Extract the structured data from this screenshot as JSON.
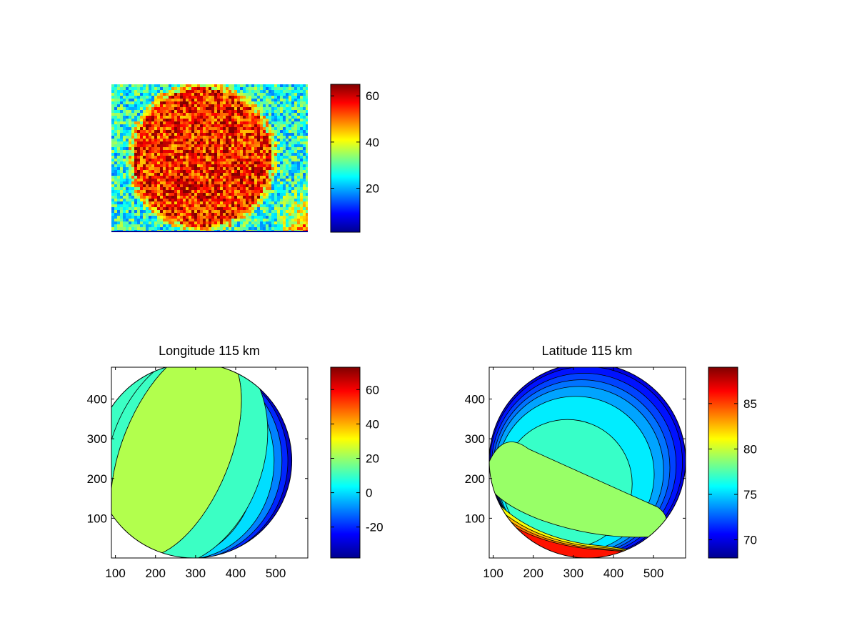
{
  "chart_data": [
    {
      "type": "heatmap",
      "title": "",
      "description_of_field": "noisy intensity image of a bright disk on a lower background",
      "colormap": "jet",
      "axes_visible": false,
      "colorbar": {
        "range": [
          1,
          65
        ],
        "ticks": [
          20,
          40,
          60
        ],
        "tick_labels": [
          "20",
          "40",
          "60"
        ]
      },
      "disk_level": 55,
      "background_level": 27
    },
    {
      "type": "heatmap",
      "title": "Longitude 115 km",
      "colormap": "jet",
      "xlim": [
        90,
        580
      ],
      "ylim": [
        0,
        480
      ],
      "x_ticks": [
        100,
        200,
        300,
        400,
        500
      ],
      "x_tick_labels": [
        "100",
        "200",
        "300",
        "400",
        "500"
      ],
      "y_ticks": [
        100,
        200,
        300,
        400
      ],
      "y_tick_labels": [
        "100",
        "200",
        "300",
        "400"
      ],
      "disk": {
        "cx": 295,
        "cy": 245,
        "r": 245
      },
      "contour_levels": [
        -30,
        -20,
        -10,
        0,
        10,
        20,
        30,
        40,
        50,
        60
      ],
      "colorbar": {
        "range": [
          -38,
          73
        ],
        "ticks": [
          -20,
          0,
          20,
          40,
          60
        ],
        "tick_labels": [
          "-20",
          "0",
          "20",
          "40",
          "60"
        ]
      }
    },
    {
      "type": "heatmap",
      "title": "Latitude 115 km",
      "colormap": "jet",
      "xlim": [
        90,
        580
      ],
      "ylim": [
        0,
        480
      ],
      "x_ticks": [
        100,
        200,
        300,
        400,
        500
      ],
      "x_tick_labels": [
        "100",
        "200",
        "300",
        "400",
        "500"
      ],
      "y_ticks": [
        100,
        200,
        300,
        400
      ],
      "y_tick_labels": [
        "100",
        "200",
        "300",
        "400"
      ],
      "disk": {
        "cx": 335,
        "cy": 245,
        "r": 245
      },
      "contour_levels": [
        70,
        71,
        72,
        73,
        74,
        75,
        77,
        79,
        81,
        82,
        83,
        84,
        85,
        86,
        87,
        88
      ],
      "colorbar": {
        "range": [
          68,
          89
        ],
        "ticks": [
          70,
          75,
          80,
          85
        ],
        "tick_labels": [
          "70",
          "75",
          "80",
          "85"
        ]
      }
    }
  ]
}
